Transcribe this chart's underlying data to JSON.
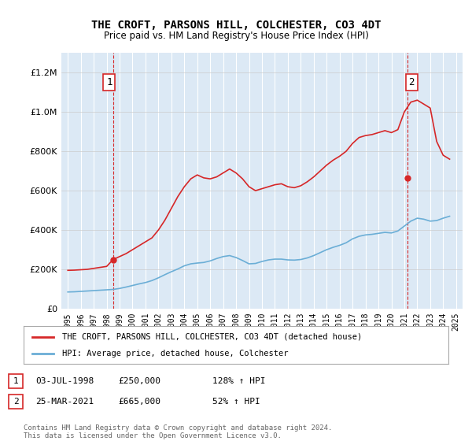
{
  "title": "THE CROFT, PARSONS HILL, COLCHESTER, CO3 4DT",
  "subtitle": "Price paid vs. HM Land Registry's House Price Index (HPI)",
  "background_color": "#dce9f5",
  "plot_bg_color": "#dce9f5",
  "legend_label_red": "THE CROFT, PARSONS HILL, COLCHESTER, CO3 4DT (detached house)",
  "legend_label_blue": "HPI: Average price, detached house, Colchester",
  "footer": "Contains HM Land Registry data © Crown copyright and database right 2024.\nThis data is licensed under the Open Government Licence v3.0.",
  "annotation1": {
    "num": "1",
    "date": "03-JUL-1998",
    "price": "£250,000",
    "hpi": "128% ↑ HPI",
    "x_year": 1998.5,
    "y_val": 250000
  },
  "annotation2": {
    "num": "2",
    "date": "25-MAR-2021",
    "price": "£665,000",
    "hpi": "52% ↑ HPI",
    "x_year": 2021.25,
    "y_val": 665000
  },
  "ylim": [
    0,
    1300000
  ],
  "xlim_start": 1994.5,
  "xlim_end": 2025.5,
  "hpi_line_color": "#6baed6",
  "price_line_color": "#d62728",
  "dashed_line_color": "#d62728",
  "hpi_data_x": [
    1995,
    1995.5,
    1996,
    1996.5,
    1997,
    1997.5,
    1998,
    1998.5,
    1999,
    1999.5,
    2000,
    2000.5,
    2001,
    2001.5,
    2002,
    2002.5,
    2003,
    2003.5,
    2004,
    2004.5,
    2005,
    2005.5,
    2006,
    2006.5,
    2007,
    2007.5,
    2008,
    2008.5,
    2009,
    2009.5,
    2010,
    2010.5,
    2011,
    2011.5,
    2012,
    2012.5,
    2013,
    2013.5,
    2014,
    2014.5,
    2015,
    2015.5,
    2016,
    2016.5,
    2017,
    2017.5,
    2018,
    2018.5,
    2019,
    2019.5,
    2020,
    2020.5,
    2021,
    2021.5,
    2022,
    2022.5,
    2023,
    2023.5,
    2024,
    2024.5
  ],
  "hpi_data_y": [
    85000,
    86000,
    88000,
    90000,
    92000,
    94000,
    96000,
    98000,
    103000,
    110000,
    118000,
    126000,
    133000,
    143000,
    157000,
    173000,
    188000,
    202000,
    218000,
    228000,
    232000,
    235000,
    243000,
    255000,
    265000,
    270000,
    260000,
    245000,
    228000,
    230000,
    240000,
    248000,
    252000,
    252000,
    248000,
    247000,
    250000,
    258000,
    270000,
    285000,
    300000,
    312000,
    322000,
    335000,
    355000,
    368000,
    375000,
    378000,
    383000,
    388000,
    385000,
    395000,
    420000,
    445000,
    460000,
    455000,
    445000,
    448000,
    460000,
    470000
  ],
  "price_data_x": [
    1995,
    1995.5,
    1996,
    1996.5,
    1997,
    1997.5,
    1998,
    1998.5,
    1999,
    1999.5,
    2000,
    2000.5,
    2001,
    2001.5,
    2002,
    2002.5,
    2003,
    2003.5,
    2004,
    2004.5,
    2005,
    2005.5,
    2006,
    2006.5,
    2007,
    2007.5,
    2008,
    2008.5,
    2009,
    2009.5,
    2010,
    2010.5,
    2011,
    2011.5,
    2012,
    2012.5,
    2013,
    2013.5,
    2014,
    2014.5,
    2015,
    2015.5,
    2016,
    2016.5,
    2017,
    2017.5,
    2018,
    2018.5,
    2019,
    2019.5,
    2020,
    2020.5,
    2021,
    2021.5,
    2022,
    2022.5,
    2023,
    2023.5,
    2024,
    2024.5
  ],
  "price_data_y": [
    195000,
    196000,
    198000,
    200000,
    205000,
    210000,
    215000,
    250000,
    265000,
    280000,
    300000,
    320000,
    340000,
    360000,
    400000,
    450000,
    510000,
    570000,
    620000,
    660000,
    680000,
    665000,
    660000,
    670000,
    690000,
    710000,
    690000,
    660000,
    620000,
    600000,
    610000,
    620000,
    630000,
    635000,
    620000,
    615000,
    625000,
    645000,
    670000,
    700000,
    730000,
    755000,
    775000,
    800000,
    840000,
    870000,
    880000,
    885000,
    895000,
    905000,
    895000,
    910000,
    1000000,
    1050000,
    1060000,
    1040000,
    1020000,
    850000,
    780000,
    760000
  ]
}
